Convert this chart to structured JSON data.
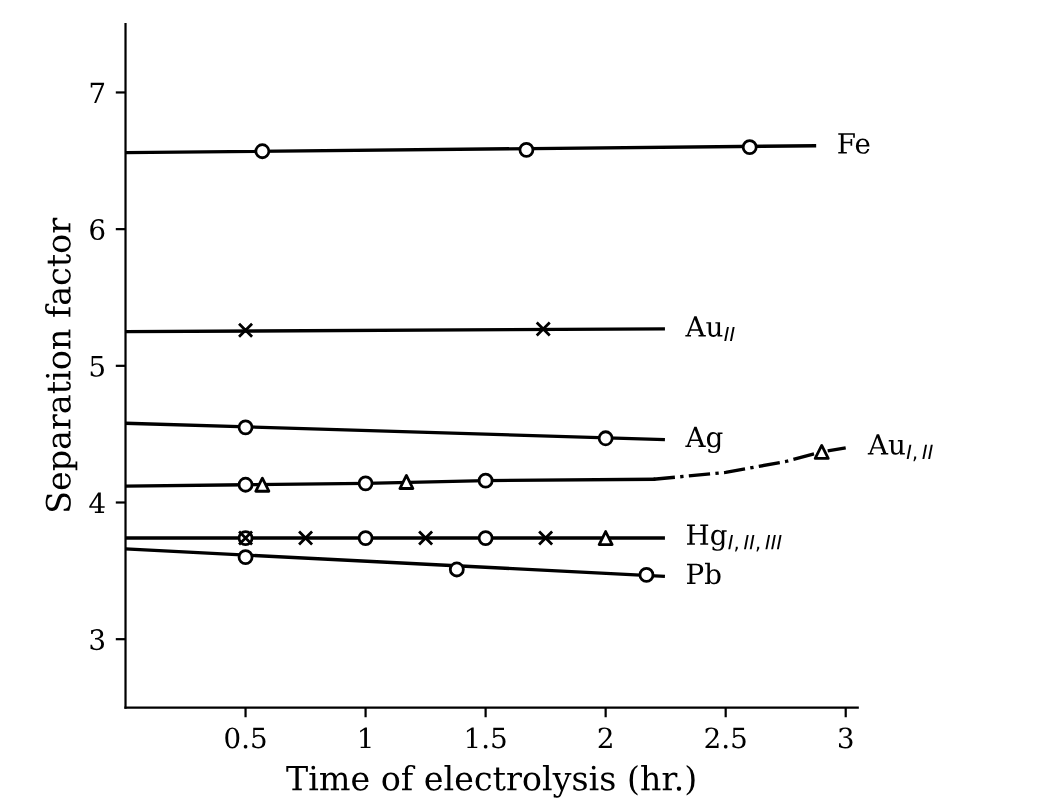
{
  "chart_data": {
    "type": "line",
    "xlabel": "Time of electrolysis (hr.)",
    "ylabel": "Separation factor",
    "xlim": [
      0,
      3.05
    ],
    "ylim": [
      2.5,
      7.5
    ],
    "xticks": [
      0.5,
      1,
      1.5,
      2,
      2.5,
      3
    ],
    "yticks": [
      3,
      4,
      5,
      6,
      7
    ],
    "grid": false,
    "legend": false,
    "series": [
      {
        "name": "Fe",
        "color": "#000000",
        "marker": "none",
        "line_style": "solid",
        "x": [
          0,
          2.87
        ],
        "values": [
          6.56,
          6.61
        ]
      },
      {
        "type": "scatter",
        "color": "#000000",
        "marker": "circle",
        "x": [
          0.57,
          1.67,
          2.6
        ],
        "values": [
          6.57,
          6.58,
          6.6
        ]
      },
      {
        "name": "Au$_{II}$",
        "color": "#000000",
        "marker": "none",
        "line_style": "solid",
        "x": [
          0,
          2.24
        ],
        "values": [
          5.25,
          5.27
        ]
      },
      {
        "type": "scatter",
        "color": "#000000",
        "marker": "cross",
        "x": [
          0.5,
          1.74
        ],
        "values": [
          5.26,
          5.27
        ]
      },
      {
        "name": "Ag",
        "color": "#000000",
        "marker": "none",
        "line_style": "solid",
        "x": [
          0,
          2.24
        ],
        "values": [
          4.58,
          4.46
        ]
      },
      {
        "type": "scatter",
        "color": "#000000",
        "marker": "circle",
        "x": [
          0.5,
          2.0
        ],
        "values": [
          4.55,
          4.47
        ]
      },
      {
        "color": "#000000",
        "marker": "none",
        "line_style": "solid",
        "x": [
          0,
          0.5,
          1,
          1.5,
          2.2
        ],
        "values": [
          4.12,
          4.13,
          4.14,
          4.16,
          4.17
        ]
      },
      {
        "name": "Au$_{I,II}$",
        "color": "#000000",
        "marker": "none",
        "line_style": "dashdot",
        "x": [
          2.2,
          2.5,
          2.75,
          2.9,
          3.0
        ],
        "values": [
          4.17,
          4.22,
          4.3,
          4.37,
          4.4
        ]
      },
      {
        "type": "scatter",
        "color": "#000000",
        "marker": "circle",
        "x": [
          0.5,
          1,
          1.5
        ],
        "values": [
          4.13,
          4.14,
          4.16
        ]
      },
      {
        "type": "scatter",
        "color": "#000000",
        "marker": "triangle",
        "x": [
          0.57,
          1.17,
          2.9
        ],
        "values": [
          4.13,
          4.15,
          4.37
        ]
      },
      {
        "name": "Hg$_{I,II,III}$",
        "color": "#000000",
        "marker": "none",
        "line_style": "solid",
        "x": [
          0,
          2.24
        ],
        "values": [
          3.74,
          3.74
        ]
      },
      {
        "type": "scatter",
        "color": "#000000",
        "marker": "circle",
        "x": [
          0.5,
          1,
          1.5
        ],
        "values": [
          3.74,
          3.74,
          3.74
        ]
      },
      {
        "type": "scatter",
        "color": "#000000",
        "marker": "cross",
        "x": [
          0.5,
          0.75,
          1.25,
          1.75
        ],
        "values": [
          3.74,
          3.74,
          3.74,
          3.74
        ]
      },
      {
        "type": "scatter",
        "color": "#000000",
        "marker": "triangle",
        "x": [
          2.0
        ],
        "values": [
          3.74
        ]
      },
      {
        "name": "Pb",
        "color": "#000000",
        "marker": "none",
        "line_style": "solid",
        "x": [
          0,
          2.24
        ],
        "values": [
          3.66,
          3.46
        ]
      },
      {
        "type": "scatter",
        "color": "#000000",
        "marker": "circle",
        "x": [
          0.5,
          1.38,
          2.17
        ],
        "values": [
          3.6,
          3.51,
          3.47
        ]
      }
    ]
  }
}
